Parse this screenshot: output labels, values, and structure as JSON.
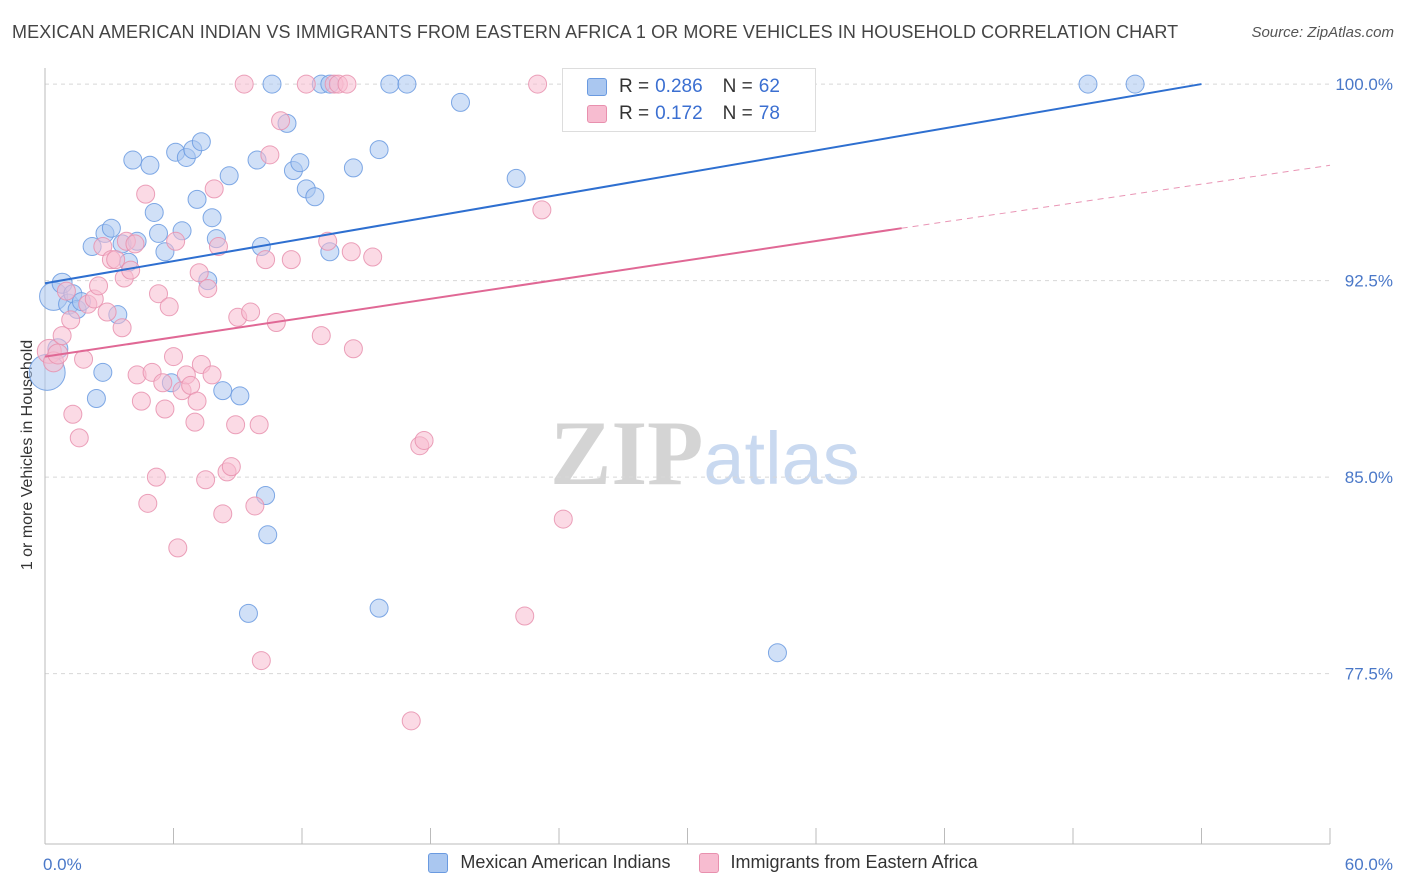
{
  "header": {
    "title": "MEXICAN AMERICAN INDIAN VS IMMIGRANTS FROM EASTERN AFRICA 1 OR MORE VEHICLES IN HOUSEHOLD CORRELATION CHART",
    "source": "Source: ZipAtlas.com"
  },
  "watermark": {
    "zip": "ZIP",
    "atlas": "atlas"
  },
  "legend": {
    "rows": [
      {
        "r_label": "R =",
        "r_value": "0.286",
        "n_label": "N =",
        "n_value": "62",
        "color": "#aac7f0",
        "border": "#6a9ae0"
      },
      {
        "r_label": "R =",
        "r_value": "0.172",
        "n_label": "N =",
        "n_value": "78",
        "color": "#f7bcd0",
        "border": "#e890ae"
      }
    ]
  },
  "bottom_legend": {
    "items": [
      {
        "label": "Mexican American Indians",
        "color": "#aac7f0",
        "border": "#6a9ae0"
      },
      {
        "label": "Immigrants from Eastern Africa",
        "color": "#f7bcd0",
        "border": "#e890ae"
      }
    ]
  },
  "chart_data": {
    "type": "scatter",
    "title": "MEXICAN AMERICAN INDIAN VS IMMIGRANTS FROM EASTERN AFRICA 1 OR MORE VEHICLES IN HOUSEHOLD CORRELATION CHART",
    "xlabel": "",
    "ylabel": "1 or more Vehicles in Household",
    "xlim": [
      0,
      60
    ],
    "ylim": [
      71.0,
      101.3
    ],
    "x_tick_labels": [
      "0.0%",
      "60.0%"
    ],
    "y_ticks": [
      77.5,
      85.0,
      92.5,
      100.0
    ],
    "y_tick_labels": [
      "77.5%",
      "85.0%",
      "92.5%",
      "100.0%"
    ],
    "grid": true,
    "legend_position": "top-center",
    "series": [
      {
        "name": "Mexican American Indians",
        "color": "#6a9ae0",
        "fill": "#aac7f0",
        "trend": {
          "x": [
            0,
            54
          ],
          "y": [
            92.4,
            100.0
          ],
          "color": "#2e6fd0"
        },
        "points": [
          [
            0.1,
            89.0,
            18
          ],
          [
            0.4,
            91.9,
            14
          ],
          [
            0.6,
            89.9,
            10
          ],
          [
            0.8,
            92.4,
            10
          ],
          [
            1.1,
            91.6,
            10
          ],
          [
            1.3,
            92.0,
            9
          ],
          [
            1.5,
            91.4,
            9
          ],
          [
            1.7,
            91.7,
            9
          ],
          [
            2.2,
            93.8,
            9
          ],
          [
            2.4,
            88.0,
            9
          ],
          [
            2.7,
            89.0,
            9
          ],
          [
            2.8,
            94.3,
            9
          ],
          [
            3.1,
            94.5,
            9
          ],
          [
            3.4,
            91.2,
            9
          ],
          [
            3.6,
            93.9,
            9
          ],
          [
            3.9,
            93.2,
            9
          ],
          [
            4.1,
            97.1,
            9
          ],
          [
            4.3,
            94.0,
            9
          ],
          [
            4.9,
            96.9,
            9
          ],
          [
            5.1,
            95.1,
            9
          ],
          [
            5.3,
            94.3,
            9
          ],
          [
            5.6,
            93.6,
            9
          ],
          [
            5.9,
            88.6,
            9
          ],
          [
            6.1,
            97.4,
            9
          ],
          [
            6.4,
            94.4,
            9
          ],
          [
            6.6,
            97.2,
            9
          ],
          [
            6.9,
            97.5,
            9
          ],
          [
            7.1,
            95.6,
            9
          ],
          [
            7.3,
            97.8,
            9
          ],
          [
            7.6,
            92.5,
            9
          ],
          [
            7.8,
            94.9,
            9
          ],
          [
            8.0,
            94.1,
            9
          ],
          [
            8.3,
            88.3,
            9
          ],
          [
            8.6,
            96.5,
            9
          ],
          [
            9.1,
            88.1,
            9
          ],
          [
            9.9,
            97.1,
            9
          ],
          [
            10.1,
            93.8,
            9
          ],
          [
            10.3,
            84.3,
            9
          ],
          [
            10.4,
            82.8,
            9
          ],
          [
            9.5,
            79.8,
            9
          ],
          [
            10.6,
            100.0,
            9
          ],
          [
            11.3,
            98.5,
            9
          ],
          [
            11.6,
            96.7,
            9
          ],
          [
            11.9,
            97.0,
            9
          ],
          [
            12.2,
            96.0,
            9
          ],
          [
            12.6,
            95.7,
            9
          ],
          [
            12.9,
            100.0,
            9
          ],
          [
            13.3,
            100.0,
            9
          ],
          [
            13.3,
            93.6,
            9
          ],
          [
            14.4,
            96.8,
            9
          ],
          [
            15.6,
            97.5,
            9
          ],
          [
            16.1,
            100.0,
            9
          ],
          [
            16.9,
            100.0,
            9
          ],
          [
            15.6,
            80.0,
            9
          ],
          [
            19.4,
            99.3,
            9
          ],
          [
            22.0,
            96.4,
            9
          ],
          [
            25.3,
            100.0,
            9
          ],
          [
            26.5,
            100.0,
            9
          ],
          [
            33.0,
            100.0,
            9
          ],
          [
            34.2,
            78.3,
            9
          ],
          [
            48.7,
            100.0,
            9
          ],
          [
            50.9,
            100.0,
            9
          ]
        ]
      },
      {
        "name": "Immigrants from Eastern Africa",
        "color": "#e890ae",
        "fill": "#f7bcd0",
        "trend": {
          "x": [
            0,
            40
          ],
          "y": [
            89.6,
            94.5
          ],
          "color": "#e06895",
          "dashed_extension": {
            "x": [
              40,
              60
            ],
            "y": [
              94.5,
              96.9
            ]
          }
        },
        "points": [
          [
            0.2,
            89.8,
            12
          ],
          [
            0.4,
            89.4,
            10
          ],
          [
            0.6,
            89.7,
            10
          ],
          [
            0.8,
            90.4,
            9
          ],
          [
            1.0,
            92.1,
            9
          ],
          [
            1.2,
            91.0,
            9
          ],
          [
            1.3,
            87.4,
            9
          ],
          [
            1.6,
            86.5,
            9
          ],
          [
            1.8,
            89.5,
            9
          ],
          [
            2.0,
            91.6,
            9
          ],
          [
            2.3,
            91.8,
            9
          ],
          [
            2.5,
            92.3,
            9
          ],
          [
            2.7,
            93.8,
            9
          ],
          [
            2.9,
            91.3,
            9
          ],
          [
            3.1,
            93.3,
            9
          ],
          [
            3.3,
            93.3,
            9
          ],
          [
            3.6,
            90.7,
            9
          ],
          [
            3.7,
            92.6,
            9
          ],
          [
            3.8,
            94.0,
            9
          ],
          [
            4.0,
            92.9,
            9
          ],
          [
            4.2,
            93.9,
            9
          ],
          [
            4.3,
            88.9,
            9
          ],
          [
            4.5,
            87.9,
            9
          ],
          [
            4.7,
            95.8,
            9
          ],
          [
            4.8,
            84.0,
            9
          ],
          [
            5.0,
            89.0,
            9
          ],
          [
            5.2,
            85.0,
            9
          ],
          [
            5.3,
            92.0,
            9
          ],
          [
            5.5,
            88.6,
            9
          ],
          [
            5.6,
            87.6,
            9
          ],
          [
            5.8,
            91.5,
            9
          ],
          [
            6.0,
            89.6,
            9
          ],
          [
            6.1,
            94.0,
            9
          ],
          [
            6.2,
            82.3,
            9
          ],
          [
            6.4,
            88.3,
            9
          ],
          [
            6.6,
            88.9,
            9
          ],
          [
            6.8,
            88.5,
            9
          ],
          [
            7.0,
            87.1,
            9
          ],
          [
            7.1,
            87.9,
            9
          ],
          [
            7.2,
            92.8,
            9
          ],
          [
            7.3,
            89.3,
            9
          ],
          [
            7.5,
            84.9,
            9
          ],
          [
            7.6,
            92.2,
            9
          ],
          [
            7.8,
            88.9,
            9
          ],
          [
            7.9,
            96.0,
            9
          ],
          [
            8.1,
            93.8,
            9
          ],
          [
            8.3,
            83.6,
            9
          ],
          [
            8.5,
            85.2,
            9
          ],
          [
            8.7,
            85.4,
            9
          ],
          [
            8.9,
            87.0,
            9
          ],
          [
            9.0,
            91.1,
            9
          ],
          [
            9.3,
            100.0,
            9
          ],
          [
            9.6,
            91.3,
            9
          ],
          [
            9.8,
            83.9,
            9
          ],
          [
            10.0,
            87.0,
            9
          ],
          [
            10.1,
            78.0,
            9
          ],
          [
            10.3,
            93.3,
            9
          ],
          [
            10.5,
            97.3,
            9
          ],
          [
            10.8,
            90.9,
            9
          ],
          [
            11.0,
            98.6,
            9
          ],
          [
            11.5,
            93.3,
            9
          ],
          [
            12.2,
            100.0,
            9
          ],
          [
            12.9,
            90.4,
            9
          ],
          [
            13.2,
            94.0,
            9
          ],
          [
            13.5,
            100.0,
            9
          ],
          [
            13.7,
            100.0,
            9
          ],
          [
            14.1,
            100.0,
            9
          ],
          [
            14.3,
            93.6,
            9
          ],
          [
            14.4,
            89.9,
            9
          ],
          [
            15.3,
            93.4,
            9
          ],
          [
            17.1,
            75.7,
            9
          ],
          [
            17.5,
            86.2,
            9
          ],
          [
            17.7,
            86.4,
            9
          ],
          [
            22.4,
            79.7,
            9
          ],
          [
            23.0,
            100.0,
            9
          ],
          [
            23.2,
            95.2,
            9
          ],
          [
            24.2,
            83.4,
            9
          ],
          [
            25.5,
            100.0,
            9
          ]
        ]
      }
    ]
  }
}
